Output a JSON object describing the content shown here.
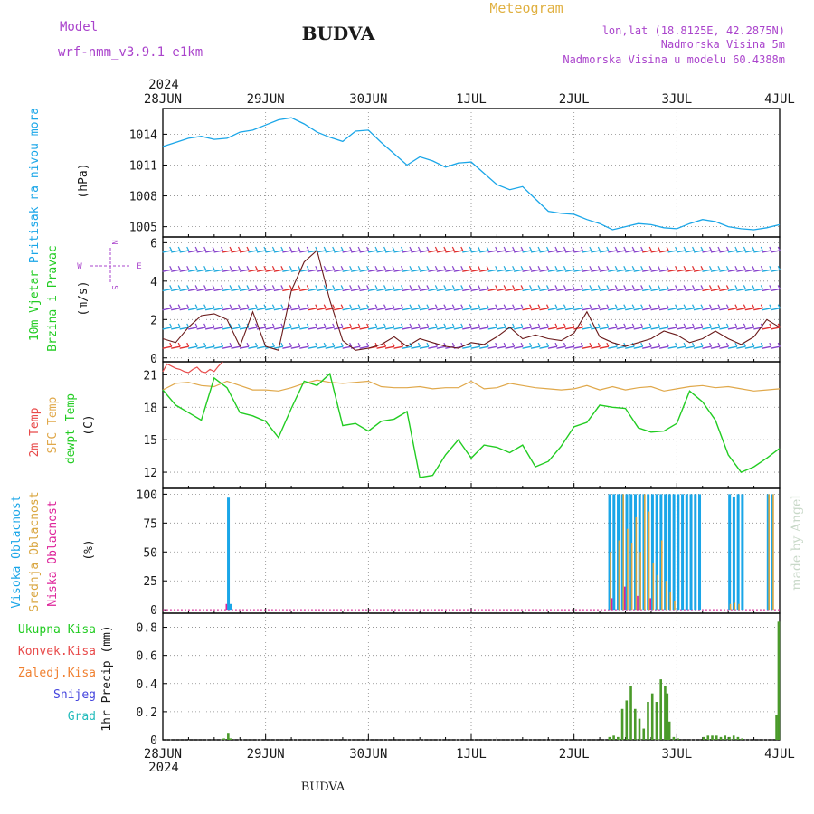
{
  "header": {
    "model_label": "Model",
    "model_name": "wrf-nmm_v3.9.1  e1km",
    "location_title": "BUDVA",
    "product": "Meteogram",
    "coords": "lon,lat (18.8125E, 42.2875N)",
    "elev_station": "Nadmorska Visina 5m",
    "elev_model": "Nadmorska Visina u modelu 60.4388m",
    "footer_title": "BUDVA",
    "credit": "made by Angel"
  },
  "colors": {
    "pressure": "#1aa6e8",
    "temp2m": "#e84a4a",
    "sfc_temp": "#e0a84a",
    "dewpt": "#22cc22",
    "cloud_high": "#1aa6e8",
    "cloud_mid": "#d9a640",
    "cloud_low": "#dd2299",
    "precip_total": "#4a9a2a",
    "precip_conv": "#e84a4a",
    "precip_frozen": "#f08030",
    "snow": "#4444dd",
    "graupel": "#22bbbb",
    "wind_label": "#22cc22",
    "compass": "#aa44cc",
    "title_text": "#1a1a1a",
    "meta_text": "#aa44cc",
    "product_text": "#e0b040"
  },
  "time_axis": {
    "year": "2024",
    "labels": [
      "28JUN",
      "29JUN",
      "30JUN",
      "1JUL",
      "2JUL",
      "3JUL",
      "4JUL"
    ]
  },
  "chart_data": [
    {
      "type": "line",
      "panel": "pressure",
      "ylabel_side": "Pritisak na nivou mora",
      "ylabel": "(hPa)",
      "yticks": [
        1005,
        1008,
        1011,
        1014
      ],
      "ylim": [
        1004,
        1016.5
      ],
      "grid": true,
      "series": [
        {
          "x": [
            0,
            3,
            6,
            9,
            12,
            15,
            18,
            21,
            24,
            27,
            30,
            33,
            36,
            39,
            42,
            45,
            48,
            51,
            54,
            57,
            60,
            63,
            66,
            69,
            72,
            75,
            78,
            81,
            84,
            87,
            90,
            93,
            96,
            99,
            102,
            105,
            108,
            111,
            114,
            117,
            120,
            123,
            126,
            129,
            132,
            135,
            138,
            141,
            144
          ],
          "y": [
            1012.8,
            1013.2,
            1013.6,
            1013.8,
            1013.5,
            1013.6,
            1014.2,
            1014.4,
            1014.9,
            1015.4,
            1015.6,
            1015.0,
            1014.2,
            1013.7,
            1013.3,
            1014.3,
            1014.4,
            1013.2,
            1012.1,
            1011.0,
            1011.8,
            1011.4,
            1010.8,
            1011.2,
            1011.3,
            1010.2,
            1009.1,
            1008.6,
            1008.9,
            1007.7,
            1006.5,
            1006.3,
            1006.2,
            1005.7,
            1005.3,
            1004.7,
            1005.0,
            1005.3,
            1005.2,
            1004.9,
            1004.8,
            1005.3,
            1005.7,
            1005.5,
            1005.0,
            1004.8,
            1004.7,
            1004.9,
            1005.2
          ]
        }
      ]
    },
    {
      "type": "line",
      "panel": "wind",
      "ylabel_side": "10m Vjetar",
      "ylabel_side2": "Brzina i Pravac",
      "ylabel": "(m/s)",
      "compass": {
        "n": "N",
        "s": "S",
        "w": "W",
        "e": "E"
      },
      "yticks": [
        0,
        2,
        4,
        6
      ],
      "ylim": [
        -0.2,
        6.3
      ],
      "series": [
        {
          "x": [
            0,
            3,
            6,
            9,
            12,
            15,
            18,
            21,
            24,
            27,
            30,
            33,
            36,
            39,
            42,
            45,
            48,
            51,
            54,
            57,
            60,
            63,
            66,
            69,
            72,
            75,
            78,
            81,
            84,
            87,
            90,
            93,
            96,
            99,
            102,
            105,
            108,
            111,
            114,
            117,
            120,
            123,
            126,
            129,
            132,
            135,
            138,
            141,
            144
          ],
          "y": [
            1.0,
            0.8,
            1.6,
            2.2,
            2.3,
            2.0,
            0.6,
            2.4,
            0.6,
            0.4,
            3.5,
            5.0,
            5.6,
            3.0,
            0.9,
            0.4,
            0.5,
            0.7,
            1.1,
            0.6,
            1.0,
            0.8,
            0.6,
            0.5,
            0.8,
            0.7,
            1.1,
            1.6,
            1.0,
            1.2,
            1.0,
            0.9,
            1.3,
            2.4,
            1.1,
            0.8,
            0.6,
            0.8,
            1.0,
            1.4,
            1.2,
            0.8,
            1.0,
            1.4,
            1.0,
            0.7,
            1.1,
            2.0,
            1.6
          ]
        }
      ]
    },
    {
      "type": "line",
      "panel": "temperature",
      "ylabel_side": "2m Temp",
      "ylabel_side2": "SFC Temp",
      "ylabel_side3": "dewpt Temp",
      "ylabel": "(C)",
      "yticks": [
        12,
        15,
        18,
        21
      ],
      "ylim": [
        10.5,
        22.2
      ],
      "series": [
        {
          "x": [
            0,
            1,
            2,
            3,
            4,
            5,
            6,
            7,
            8,
            9,
            10,
            11,
            12,
            13,
            14
          ],
          "y": [
            21.3,
            22.0,
            21.8,
            21.6,
            21.5,
            21.3,
            21.2,
            21.5,
            21.7,
            21.3,
            21.2,
            21.5,
            21.3,
            21.8,
            22.2
          ]
        },
        {
          "x": [
            0,
            3,
            6,
            9,
            12,
            15,
            18,
            21,
            24,
            27,
            30,
            33,
            36,
            39,
            42,
            45,
            48,
            51,
            54,
            57,
            60,
            63,
            66,
            69,
            72,
            75,
            78,
            81,
            84,
            87,
            90,
            93,
            96,
            99,
            102,
            105,
            108,
            111,
            114,
            117,
            120,
            123,
            126,
            129,
            132,
            135,
            138,
            141,
            144
          ],
          "y": [
            19.6,
            20.2,
            20.3,
            20.0,
            19.9,
            20.4,
            20.0,
            19.6,
            19.6,
            19.5,
            19.8,
            20.2,
            20.5,
            20.3,
            20.2,
            20.3,
            20.4,
            19.9,
            19.8,
            19.8,
            19.9,
            19.7,
            19.8,
            19.8,
            20.4,
            19.7,
            19.8,
            20.2,
            20.0,
            19.8,
            19.7,
            19.6,
            19.7,
            20.0,
            19.6,
            19.9,
            19.6,
            19.8,
            19.9,
            19.5,
            19.7,
            19.9,
            20.0,
            19.8,
            19.9,
            19.7,
            19.5,
            19.6,
            19.7
          ]
        },
        {
          "x": [
            0,
            3,
            6,
            9,
            12,
            15,
            18,
            21,
            24,
            27,
            30,
            33,
            36,
            39,
            42,
            45,
            48,
            51,
            54,
            57,
            60,
            63,
            66,
            69,
            72,
            75,
            78,
            81,
            84,
            87,
            90,
            93,
            96,
            99,
            102,
            105,
            108,
            111,
            114,
            117,
            120,
            123,
            126,
            129,
            132,
            135,
            138,
            141,
            144
          ],
          "y": [
            19.6,
            18.2,
            17.5,
            16.8,
            20.7,
            19.8,
            17.5,
            17.2,
            16.7,
            15.2,
            17.9,
            20.4,
            20.0,
            21.1,
            16.3,
            16.5,
            15.8,
            16.7,
            16.9,
            17.6,
            11.5,
            11.7,
            13.6,
            15.0,
            13.3,
            14.5,
            14.3,
            13.8,
            14.5,
            12.5,
            13.0,
            14.4,
            16.2,
            16.6,
            18.2,
            18.0,
            17.9,
            16.1,
            15.7,
            15.8,
            16.5,
            19.5,
            18.5,
            16.8,
            13.6,
            12.0,
            12.5,
            13.3,
            14.2
          ]
        }
      ]
    },
    {
      "type": "bar",
      "panel": "cloud",
      "ylabel_side": "Visoka Oblacnost",
      "ylabel_side2": "Srednja Oblacnost",
      "ylabel_side3": "Niska Oblacnost",
      "ylabel": "(%)",
      "yticks": [
        0,
        25,
        50,
        75,
        100
      ],
      "ylim": [
        -3,
        105
      ],
      "series": [
        {
          "x": [
            15,
            15.5,
            104,
            105,
            106,
            107,
            108,
            109,
            110,
            111,
            112,
            113,
            114,
            115,
            116,
            117,
            118,
            119,
            120,
            121,
            122,
            123,
            124,
            125,
            132,
            133,
            134,
            135,
            141,
            142
          ],
          "values": [
            97,
            5,
            100,
            100,
            100,
            100,
            100,
            100,
            100,
            100,
            100,
            100,
            100,
            100,
            100,
            100,
            100,
            100,
            100,
            100,
            100,
            100,
            100,
            100,
            100,
            98,
            100,
            100,
            100,
            100
          ]
        },
        {
          "x": [
            15,
            104,
            106,
            107,
            108,
            109,
            110,
            111,
            112,
            113,
            114,
            115,
            116,
            117,
            118,
            119,
            132,
            133,
            134,
            141,
            142
          ],
          "values": [
            0,
            50,
            60,
            100,
            70,
            58,
            80,
            50,
            100,
            85,
            40,
            30,
            60,
            25,
            15,
            8,
            5,
            6,
            5,
            100,
            100
          ]
        },
        {
          "x": [
            14,
            15,
            104,
            107,
            110,
            113
          ],
          "values": [
            5,
            0,
            10,
            20,
            12,
            10
          ]
        }
      ]
    },
    {
      "type": "bar",
      "panel": "precip",
      "ylabel_side": "Ukupna Kisa",
      "ylabel_side2": "Konvek.Kisa",
      "ylabel_side3": "Zaledj.Kisa",
      "ylabel_side4": "Snijeg",
      "ylabel_side5": "Grad",
      "ylabel": "1hr Precip (mm)",
      "yticks": [
        0,
        0.2,
        0.4,
        0.6,
        0.8
      ],
      "ylim": [
        0,
        0.9
      ],
      "series": [
        {
          "x": [
            14,
            15,
            15.5,
            104,
            105,
            106,
            107,
            108,
            109,
            110,
            111,
            112,
            113,
            114,
            115,
            116,
            117,
            117.5,
            118,
            119,
            120,
            126,
            127,
            128,
            129,
            130,
            131,
            132,
            133,
            134,
            135,
            143,
            143.5
          ],
          "values": [
            0.01,
            0.05,
            0.01,
            0.02,
            0.03,
            0.02,
            0.22,
            0.28,
            0.38,
            0.22,
            0.15,
            0.08,
            0.27,
            0.33,
            0.27,
            0.43,
            0.38,
            0.33,
            0.13,
            0.02,
            0.01,
            0.02,
            0.03,
            0.03,
            0.03,
            0.02,
            0.03,
            0.02,
            0.03,
            0.02,
            0.01,
            0.18,
            0.84
          ]
        }
      ]
    }
  ]
}
